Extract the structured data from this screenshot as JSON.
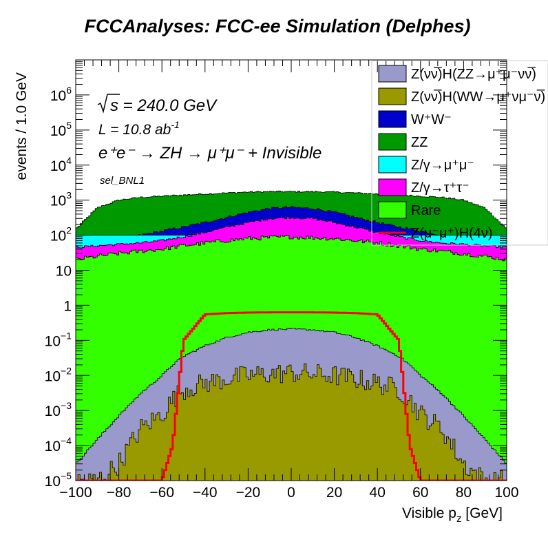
{
  "chart_data": {
    "type": "area",
    "title": "FCCAnalyses: FCC-ee Simulation (Delphes)",
    "xlabel": "Visible p_z [GeV]",
    "ylabel": "events / 1.0 GeV",
    "xlim": [
      -100,
      100
    ],
    "ylim": [
      1e-05,
      10000000
    ],
    "yscale": "log",
    "x_ticks": [
      "−100",
      "−80",
      "−60",
      "−40",
      "−20",
      "0",
      "20",
      "40",
      "60",
      "80",
      "100"
    ],
    "x_tick_values": [
      -100,
      -80,
      -60,
      -40,
      -20,
      0,
      20,
      40,
      60,
      80,
      100
    ],
    "y_tick_values": [
      1e-05,
      0.0001,
      0.001,
      0.01,
      0.1,
      1,
      10,
      100,
      1000,
      10000,
      100000,
      1000000
    ],
    "y_ticks": [
      {
        "base": "10",
        "exp": "−5"
      },
      {
        "base": "10",
        "exp": "−4"
      },
      {
        "base": "10",
        "exp": "−3"
      },
      {
        "base": "10",
        "exp": "−2"
      },
      {
        "base": "10",
        "exp": "−1"
      },
      {
        "base": "1",
        "exp": ""
      },
      {
        "base": "10",
        "exp": ""
      },
      {
        "base": "10",
        "exp": "2"
      },
      {
        "base": "10",
        "exp": "3"
      },
      {
        "base": "10",
        "exp": "4"
      },
      {
        "base": "10",
        "exp": "5"
      },
      {
        "base": "10",
        "exp": "6"
      }
    ],
    "annotations": {
      "sqrt_s": "s = 240.0 GeV",
      "lumi_label": "L = 10.8 ab",
      "lumi_exp": "-1",
      "process": "e⁺e⁻ → ZH → μ⁺μ⁻ + Invisible",
      "selection": "sel_BNL1"
    },
    "legend_position": "top-right",
    "x": [
      -100,
      -90,
      -80,
      -70,
      -60,
      -55,
      -50,
      -40,
      -30,
      -20,
      -10,
      0,
      10,
      20,
      30,
      40,
      50,
      55,
      60,
      70,
      80,
      90,
      100
    ],
    "series": [
      {
        "name": "Z(νν̅)H(ZZ→μ⁺μ⁻νν̅)",
        "color": "#9999cc",
        "stack_total": [
          3e-05,
          0.00015,
          0.0007,
          0.003,
          0.01,
          0.02,
          0.035,
          0.07,
          0.12,
          0.17,
          0.2,
          0.21,
          0.2,
          0.17,
          0.12,
          0.07,
          0.035,
          0.02,
          0.01,
          0.003,
          0.0007,
          0.00015,
          3e-05
        ]
      },
      {
        "name": "Z(νν̅)H(WW→μ⁺νμ⁻ν̅)",
        "color": "#999900",
        "stack_total": [
          1e-05,
          1e-05,
          3e-05,
          0.0003,
          0.0008,
          0.002,
          0.004,
          0.006,
          0.008,
          0.01,
          0.011,
          0.012,
          0.011,
          0.01,
          0.008,
          0.006,
          0.004,
          0.002,
          0.0008,
          0.0003,
          3e-05,
          1e-05,
          1e-05
        ]
      },
      {
        "name": "W⁺W⁻",
        "color": "#0000cc",
        "stack_total": [
          60,
          70,
          80,
          100,
          130,
          150,
          170,
          230,
          320,
          450,
          580,
          620,
          580,
          450,
          320,
          230,
          170,
          150,
          130,
          100,
          80,
          70,
          60
        ]
      },
      {
        "name": "ZZ",
        "color": "#009900",
        "stack_total": [
          150,
          600,
          1000,
          1200,
          1300,
          1350,
          1400,
          1500,
          1600,
          1700,
          1750,
          1750,
          1750,
          1700,
          1600,
          1500,
          1400,
          1350,
          1300,
          1200,
          1000,
          600,
          150
        ]
      },
      {
        "name": "Z/γ→μ⁺μ⁻",
        "color": "#00ffff",
        "stack_total": [
          100,
          100,
          100,
          100,
          100,
          100,
          100,
          100,
          100,
          100,
          100,
          100,
          100,
          100,
          100,
          100,
          100,
          100,
          100,
          100,
          100,
          100,
          100
        ]
      },
      {
        "name": "Z/γ→τ⁺τ⁻",
        "color": "#ff00ff",
        "stack_total": [
          45,
          50,
          55,
          60,
          70,
          80,
          90,
          120,
          170,
          230,
          300,
          320,
          300,
          230,
          170,
          120,
          90,
          80,
          70,
          60,
          55,
          50,
          45
        ]
      },
      {
        "name": "Rare",
        "color": "#33ff00",
        "stack_total": [
          20,
          25,
          30,
          35,
          40,
          45,
          50,
          60,
          70,
          80,
          85,
          90,
          85,
          80,
          70,
          60,
          50,
          45,
          40,
          35,
          30,
          25,
          20
        ]
      },
      {
        "name": "Z(μ⁻μ⁺)H(4ν)",
        "color": "#ff0000",
        "line": [
          1e-05,
          1e-05,
          1e-05,
          1e-05,
          1e-05,
          0.0001,
          0.1,
          0.55,
          0.6,
          0.62,
          0.63,
          0.63,
          0.63,
          0.62,
          0.6,
          0.55,
          0.1,
          0.0001,
          1e-05,
          1e-05,
          1e-05,
          1e-05,
          1e-05
        ]
      }
    ]
  }
}
